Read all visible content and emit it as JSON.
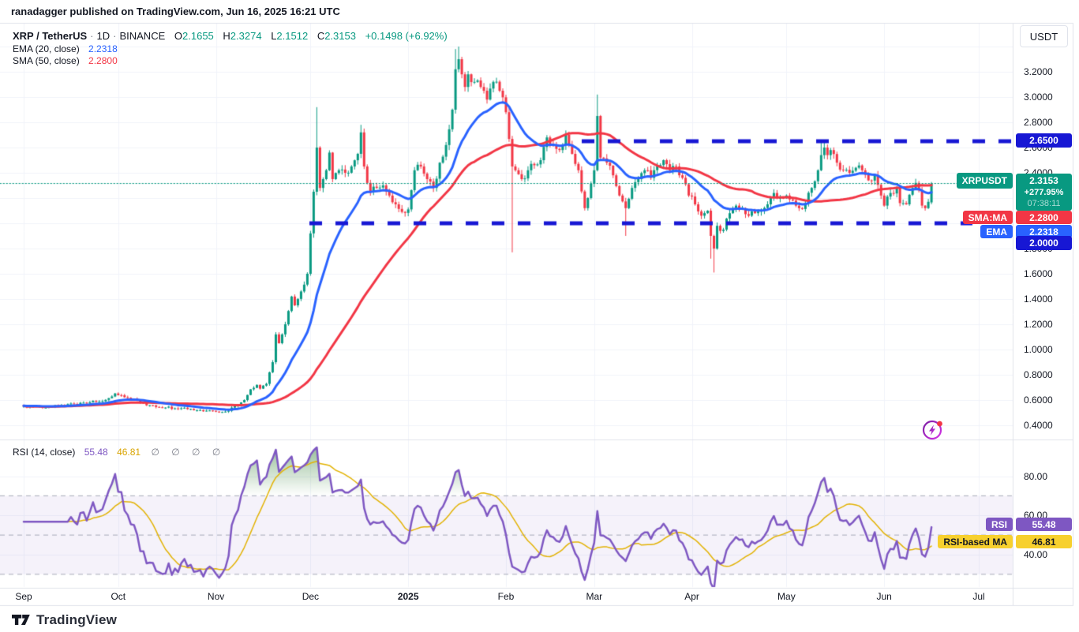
{
  "header": {
    "published_line": "ranadagger published on TradingView.com, Jun 16, 2025 16:21 UTC"
  },
  "legend": {
    "title_symbol": "XRP / TetherUS",
    "separator": "·",
    "interval": "1D",
    "exchange": "BINANCE",
    "o_label": "O",
    "o_value": "2.1655",
    "h_label": "H",
    "h_value": "2.3274",
    "l_label": "L",
    "l_value": "2.1512",
    "c_label": "C",
    "c_value": "2.3153",
    "change": "+0.1498 (+6.92%)",
    "ema_label": "EMA (20, close)",
    "ema_value": "2.2318",
    "sma_label": "SMA (50, close)",
    "sma_value": "2.2800"
  },
  "rsi_legend": {
    "title": "RSI (14, close)",
    "rsi_value": "55.48",
    "ma_value": "46.81",
    "placeholders": "∅ ∅ ∅ ∅"
  },
  "price_axis": {
    "currency": "USDT",
    "ticks": [
      [
        "3.2000",
        3.2
      ],
      [
        "3.0000",
        3.0
      ],
      [
        "2.8000",
        2.8
      ],
      [
        "2.4000",
        2.4
      ],
      [
        "1.6000",
        1.6
      ],
      [
        "1.4000",
        1.4
      ],
      [
        "1.2000",
        1.2
      ],
      [
        "1.0000",
        1.0
      ],
      [
        "0.8000",
        0.8
      ],
      [
        "0.6000",
        0.6
      ],
      [
        "0.4000",
        0.4
      ]
    ],
    "hidden_ticks": [
      [
        "2.6000",
        2.6
      ],
      [
        "1.8000",
        1.8
      ]
    ],
    "upper_level_badge": "2.6500",
    "lower_level_badge": "2.0000",
    "last_badge": {
      "symbol_label": "XRPUSDT",
      "price": "2.3153",
      "change_pct": "+277.95%",
      "countdown": "07:38:11"
    },
    "sma_badge": {
      "label": "SMA:MA",
      "value": "2.2800"
    },
    "ema_badge": {
      "label": "EMA",
      "value": "2.2318"
    }
  },
  "rsi_axis": {
    "ticks": [
      [
        "80.00",
        80
      ],
      [
        "60.00",
        60
      ],
      [
        "40.00",
        40
      ]
    ],
    "rsi_badge": {
      "label": "RSI",
      "value": "55.48"
    },
    "ma_badge": {
      "label": "RSI-based MA",
      "value": "46.81"
    }
  },
  "time_axis": {
    "labels": [
      [
        "Sep",
        0,
        false
      ],
      [
        "Oct",
        30,
        false
      ],
      [
        "Nov",
        61,
        false
      ],
      [
        "Dec",
        91,
        false
      ],
      [
        "2025",
        122,
        true
      ],
      [
        "Feb",
        153,
        false
      ],
      [
        "Mar",
        181,
        false
      ],
      [
        "Apr",
        212,
        false
      ],
      [
        "May",
        242,
        false
      ],
      [
        "Jun",
        273,
        false
      ],
      [
        "Jul",
        303,
        false
      ]
    ]
  },
  "footer": {
    "brand": "TradingView"
  },
  "colors": {
    "up": "#089981",
    "down": "#f23645",
    "ema": "#2962ff",
    "sma": "#f23645",
    "level_line": "#1717d4",
    "last_price_line": "#089981",
    "rsi": "#7e57c2",
    "rsi_ma": "#e2b203",
    "rsi_ma_badge": "#f7d02e",
    "band_fill": "rgba(126,87,194,0.08)",
    "band_line": "#a6a9b8",
    "overbought_fill": "#2e7d32",
    "grid": "#f0f3fa",
    "border": "#e0e3eb",
    "text": "#131722",
    "muted": "#787b86"
  },
  "chart_data": {
    "type": "candlestick",
    "symbol": "XRP/USDT",
    "exchange": "BINANCE",
    "interval": "1D",
    "start_date": "2024-09-01",
    "end_date": "2025-06-16",
    "days": 289,
    "title": "XRP / TetherUS · 1D · BINANCE",
    "price_axis_ticks": [
      3.2,
      3.0,
      2.8,
      2.6,
      2.4,
      2.2,
      2.0,
      1.8,
      1.6,
      1.4,
      1.2,
      1.0,
      0.8,
      0.6,
      0.4
    ],
    "horizontal_levels": [
      2.65,
      2.0
    ],
    "last_price": 2.3153,
    "last_candle": {
      "o": 2.1655,
      "h": 2.3274,
      "l": 2.1512,
      "c": 2.3153
    },
    "overlays": [
      {
        "name": "EMA",
        "period": 20,
        "last": 2.2318
      },
      {
        "name": "SMA",
        "period": 50,
        "last": 2.28
      }
    ],
    "price_anchors": [
      [
        0,
        0.555
      ],
      [
        3,
        0.545
      ],
      [
        6,
        0.538
      ],
      [
        9,
        0.548
      ],
      [
        12,
        0.558
      ],
      [
        15,
        0.572
      ],
      [
        18,
        0.578
      ],
      [
        21,
        0.582
      ],
      [
        24,
        0.588
      ],
      [
        27,
        0.615
      ],
      [
        29,
        0.652
      ],
      [
        31,
        0.638
      ],
      [
        33,
        0.618
      ],
      [
        36,
        0.598
      ],
      [
        39,
        0.558
      ],
      [
        42,
        0.545
      ],
      [
        45,
        0.54
      ],
      [
        48,
        0.534
      ],
      [
        52,
        0.528
      ],
      [
        56,
        0.52
      ],
      [
        60,
        0.514
      ],
      [
        63,
        0.505
      ],
      [
        65,
        0.515
      ],
      [
        66,
        0.54
      ],
      [
        68,
        0.558
      ],
      [
        70,
        0.6
      ],
      [
        72,
        0.685
      ],
      [
        74,
        0.72
      ],
      [
        75,
        0.69
      ],
      [
        77,
        0.728
      ],
      [
        79,
        0.9
      ],
      [
        80,
        1.12
      ],
      [
        81,
        1.05
      ],
      [
        83,
        1.2
      ],
      [
        85,
        1.42
      ],
      [
        86,
        1.35
      ],
      [
        88,
        1.46
      ],
      [
        90,
        1.6
      ],
      [
        91,
        1.92
      ],
      [
        92,
        2.25
      ],
      [
        93,
        2.6
      ],
      [
        94,
        2.28
      ],
      [
        95,
        2.35
      ],
      [
        96,
        2.42
      ],
      [
        97,
        2.56
      ],
      [
        98,
        2.35
      ],
      [
        100,
        2.42
      ],
      [
        102,
        2.4
      ],
      [
        104,
        2.45
      ],
      [
        106,
        2.55
      ],
      [
        107,
        2.72
      ],
      [
        108,
        2.45
      ],
      [
        109,
        2.32
      ],
      [
        110,
        2.25
      ],
      [
        112,
        2.28
      ],
      [
        114,
        2.3
      ],
      [
        116,
        2.22
      ],
      [
        118,
        2.15
      ],
      [
        120,
        2.09
      ],
      [
        122,
        2.11
      ],
      [
        124,
        2.42
      ],
      [
        126,
        2.45
      ],
      [
        128,
        2.35
      ],
      [
        130,
        2.28
      ],
      [
        132,
        2.48
      ],
      [
        134,
        2.62
      ],
      [
        136,
        2.9
      ],
      [
        137,
        3.22
      ],
      [
        138,
        3.3
      ],
      [
        139,
        3.18
      ],
      [
        140,
        3.08
      ],
      [
        141,
        3.18
      ],
      [
        143,
        3.12
      ],
      [
        145,
        3.08
      ],
      [
        147,
        2.98
      ],
      [
        149,
        3.12
      ],
      [
        151,
        3.05
      ],
      [
        153,
        2.88
      ],
      [
        155,
        2.45
      ],
      [
        156,
        2.42
      ],
      [
        158,
        2.35
      ],
      [
        160,
        2.42
      ],
      [
        162,
        2.46
      ],
      [
        164,
        2.5
      ],
      [
        166,
        2.68
      ],
      [
        168,
        2.62
      ],
      [
        170,
        2.58
      ],
      [
        172,
        2.7
      ],
      [
        174,
        2.55
      ],
      [
        176,
        2.42
      ],
      [
        178,
        2.12
      ],
      [
        179,
        2.2
      ],
      [
        181,
        2.42
      ],
      [
        182,
        2.85
      ],
      [
        183,
        2.52
      ],
      [
        185,
        2.48
      ],
      [
        187,
        2.38
      ],
      [
        189,
        2.22
      ],
      [
        191,
        2.12
      ],
      [
        193,
        2.28
      ],
      [
        195,
        2.35
      ],
      [
        197,
        2.42
      ],
      [
        199,
        2.36
      ],
      [
        201,
        2.45
      ],
      [
        203,
        2.5
      ],
      [
        205,
        2.42
      ],
      [
        207,
        2.45
      ],
      [
        209,
        2.36
      ],
      [
        211,
        2.22
      ],
      [
        213,
        2.15
      ],
      [
        215,
        2.06
      ],
      [
        217,
        2.1
      ],
      [
        218,
        1.9
      ],
      [
        219,
        1.8
      ],
      [
        220,
        1.98
      ],
      [
        222,
        1.95
      ],
      [
        224,
        2.08
      ],
      [
        226,
        2.14
      ],
      [
        228,
        2.12
      ],
      [
        230,
        2.06
      ],
      [
        232,
        2.08
      ],
      [
        234,
        2.1
      ],
      [
        236,
        2.15
      ],
      [
        238,
        2.24
      ],
      [
        240,
        2.2
      ],
      [
        242,
        2.22
      ],
      [
        244,
        2.18
      ],
      [
        246,
        2.12
      ],
      [
        248,
        2.16
      ],
      [
        250,
        2.28
      ],
      [
        252,
        2.42
      ],
      [
        253,
        2.54
      ],
      [
        254,
        2.6
      ],
      [
        255,
        2.54
      ],
      [
        256,
        2.58
      ],
      [
        258,
        2.48
      ],
      [
        260,
        2.42
      ],
      [
        262,
        2.4
      ],
      [
        264,
        2.44
      ],
      [
        266,
        2.42
      ],
      [
        268,
        2.34
      ],
      [
        270,
        2.38
      ],
      [
        272,
        2.22
      ],
      [
        273,
        2.14
      ],
      [
        275,
        2.24
      ],
      [
        277,
        2.28
      ],
      [
        278,
        2.16
      ],
      [
        280,
        2.15
      ],
      [
        282,
        2.28
      ],
      [
        283,
        2.32
      ],
      [
        284,
        2.26
      ],
      [
        285,
        2.14
      ],
      [
        286,
        2.12
      ],
      [
        287,
        2.17
      ],
      [
        288,
        2.3153
      ]
    ],
    "wick_events": {
      "93": {
        "h": 2.92
      },
      "107": {
        "h": 2.78
      },
      "137": {
        "h": 3.38
      },
      "138": {
        "h": 3.4
      },
      "155": {
        "l": 1.77
      },
      "182": {
        "h": 3.02
      },
      "191": {
        "l": 1.9
      },
      "218": {
        "l": 1.72
      },
      "219": {
        "l": 1.61
      },
      "253": {
        "h": 2.65
      },
      "254": {
        "h": 2.66
      }
    },
    "rsi": {
      "period": 14,
      "ma_period": 14,
      "last": 55.48,
      "ma_last": 46.81,
      "band": [
        30,
        50,
        70
      ],
      "axis_ticks": [
        80,
        60,
        40
      ],
      "overbought_above": 70
    }
  }
}
